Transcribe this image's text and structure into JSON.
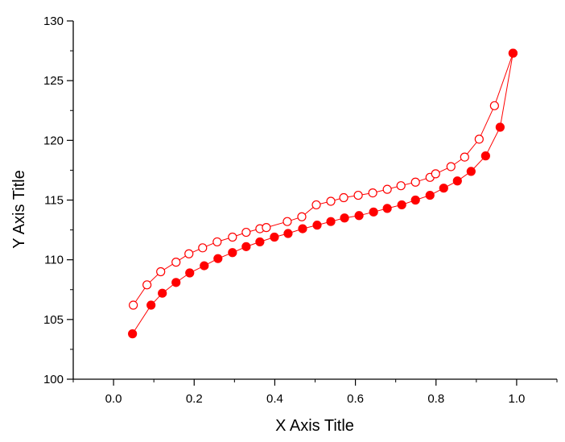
{
  "chart_data": {
    "type": "scatter",
    "title": "",
    "xlabel": "X Axis Title",
    "ylabel": "Y Axis Title",
    "xlim": [
      -0.1,
      1.1
    ],
    "ylim": [
      100,
      130
    ],
    "x_ticks": [
      "0.0",
      "0.2",
      "0.4",
      "0.6",
      "0.8",
      "1.0"
    ],
    "y_ticks": [
      "100",
      "105",
      "110",
      "115",
      "120",
      "125",
      "130"
    ],
    "grid": false,
    "legend": "none",
    "colors": {
      "series": "#ff0000"
    },
    "series": [
      {
        "marker": "open-circle",
        "x": [
          0.049,
          0.083,
          0.117,
          0.155,
          0.187,
          0.221,
          0.257,
          0.295,
          0.329,
          0.363,
          0.379,
          0.431,
          0.467,
          0.503,
          0.539,
          0.571,
          0.607,
          0.643,
          0.679,
          0.713,
          0.749,
          0.785,
          0.799,
          0.837,
          0.871,
          0.907,
          0.945,
          0.991
        ],
        "y": [
          106.2,
          107.9,
          109.0,
          109.8,
          110.5,
          111.0,
          111.5,
          111.9,
          112.3,
          112.6,
          112.7,
          113.2,
          113.6,
          114.6,
          114.9,
          115.2,
          115.4,
          115.6,
          115.9,
          116.2,
          116.5,
          116.9,
          117.2,
          117.8,
          118.6,
          120.1,
          122.9,
          127.3
        ]
      },
      {
        "marker": "filled-circle",
        "x": [
          0.047,
          0.093,
          0.121,
          0.155,
          0.189,
          0.225,
          0.259,
          0.295,
          0.329,
          0.363,
          0.399,
          0.433,
          0.469,
          0.505,
          0.539,
          0.573,
          0.609,
          0.645,
          0.679,
          0.715,
          0.749,
          0.785,
          0.819,
          0.853,
          0.887,
          0.923,
          0.959,
          0.991
        ],
        "y": [
          103.8,
          106.2,
          107.2,
          108.1,
          108.9,
          109.5,
          110.1,
          110.6,
          111.1,
          111.5,
          111.9,
          112.2,
          112.6,
          112.9,
          113.2,
          113.5,
          113.7,
          114.0,
          114.3,
          114.6,
          115.0,
          115.4,
          116.0,
          116.6,
          117.4,
          118.7,
          121.1,
          127.3
        ]
      }
    ]
  }
}
